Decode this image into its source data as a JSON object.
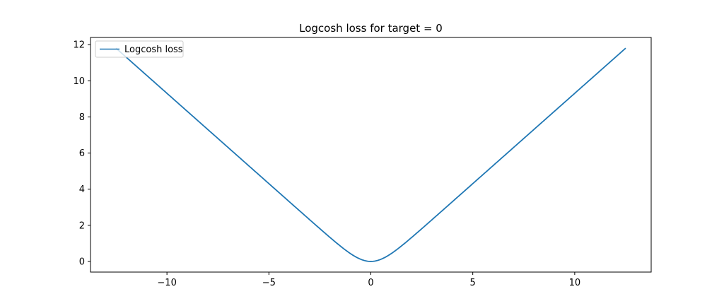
{
  "chart_data": {
    "type": "line",
    "title": "Logcosh loss for target = 0",
    "xlabel": "",
    "ylabel": "",
    "xlim": [
      -13.75,
      13.75
    ],
    "ylim": [
      -0.59,
      12.4
    ],
    "xticks": [
      -10,
      -5,
      0,
      5,
      10
    ],
    "xtick_labels": [
      "−10",
      "−5",
      "0",
      "5",
      "10"
    ],
    "yticks": [
      0,
      2,
      4,
      6,
      8,
      10,
      12
    ],
    "ytick_labels": [
      "0",
      "2",
      "4",
      "6",
      "8",
      "10",
      "12"
    ],
    "grid": false,
    "legend_position": "top-left",
    "series": [
      {
        "name": "Logcosh loss",
        "color": "#1f77b4",
        "function": "log(cosh(x))",
        "x_range": [
          -12.5,
          12.5
        ],
        "x": [
          -12.5,
          -10,
          -7.5,
          -5,
          -4,
          -3,
          -2,
          -1.5,
          -1,
          -0.5,
          0,
          0.5,
          1,
          1.5,
          2,
          3,
          4,
          5,
          7.5,
          10,
          12.5
        ],
        "values": [
          11.81,
          9.31,
          6.81,
          4.31,
          3.31,
          2.31,
          1.33,
          0.86,
          0.43,
          0.12,
          0,
          0.12,
          0.43,
          0.86,
          1.33,
          2.31,
          3.31,
          4.31,
          6.81,
          9.31,
          11.81
        ]
      }
    ]
  }
}
